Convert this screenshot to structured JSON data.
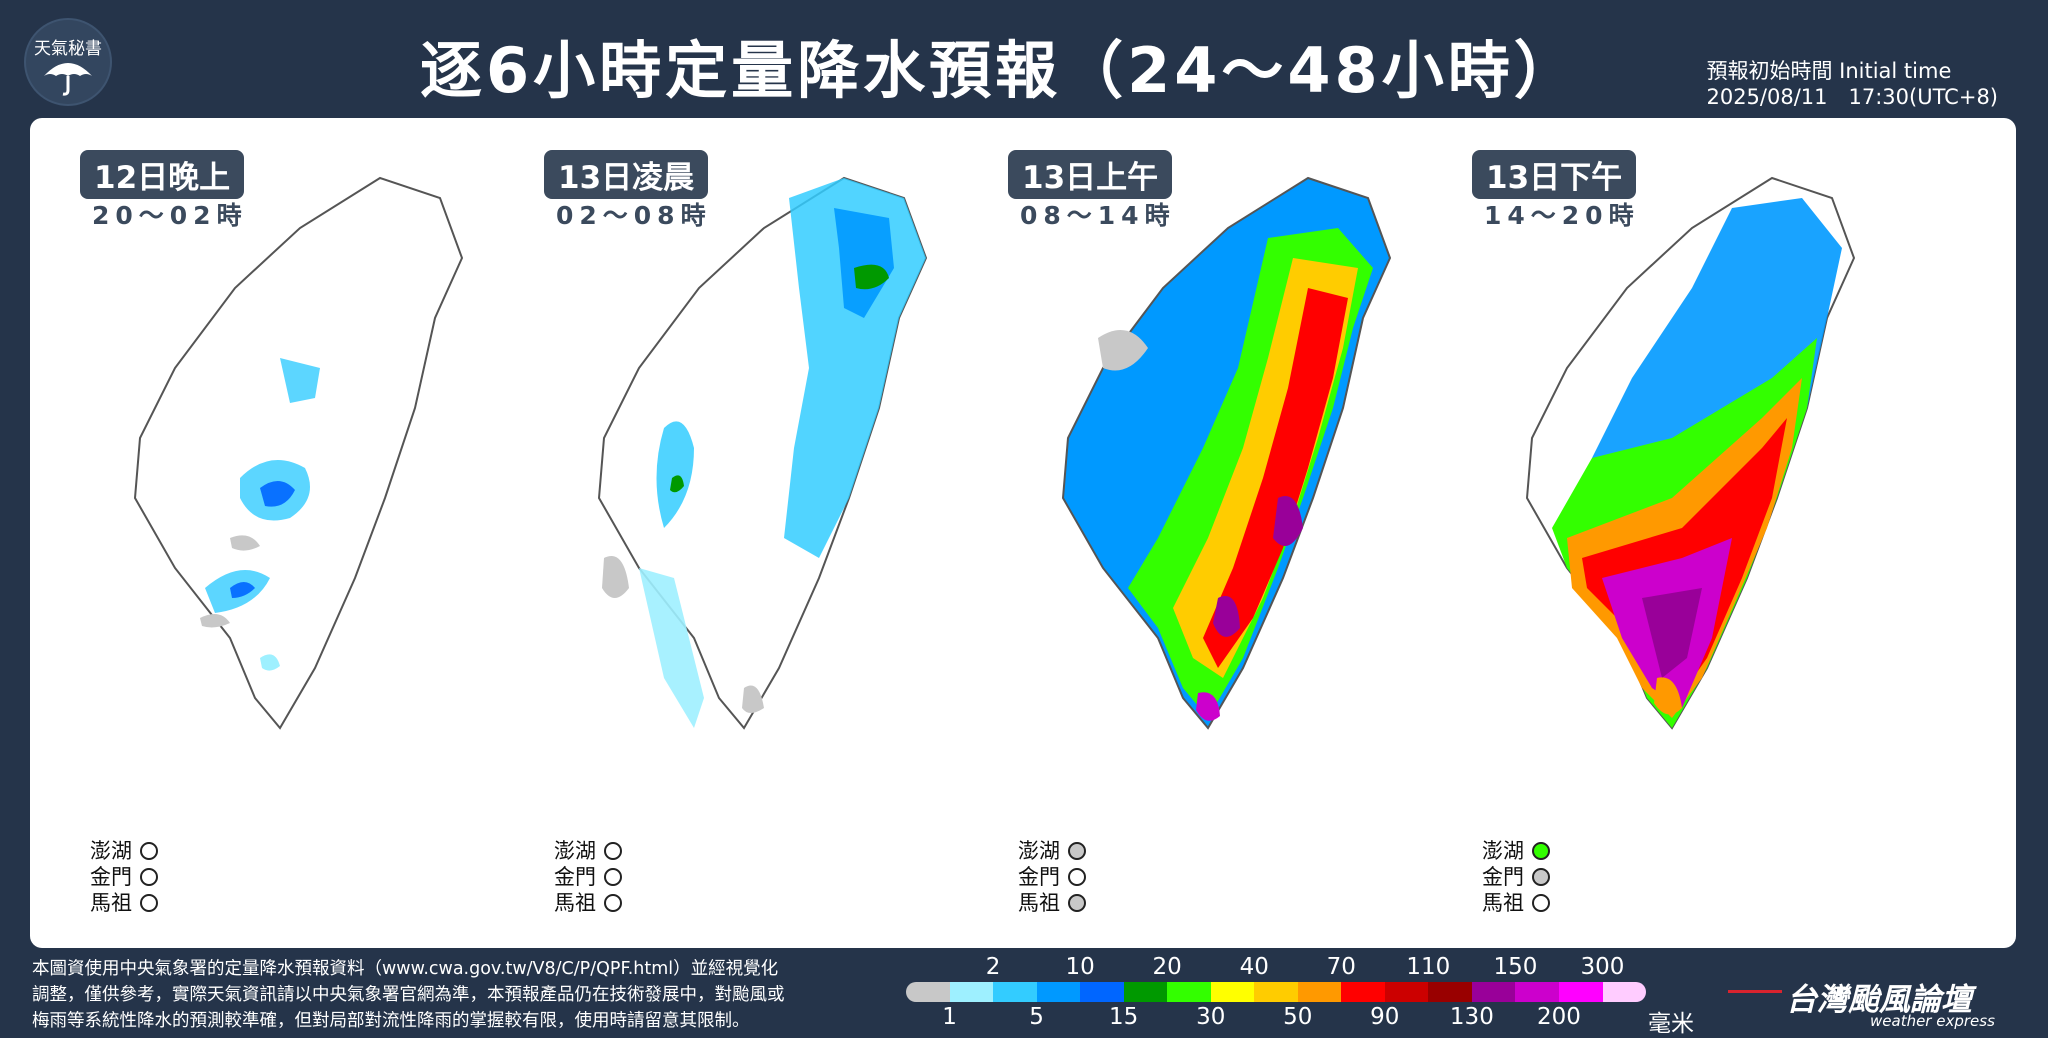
{
  "header": {
    "logo_text": "天氣秘書",
    "title": "逐6小時定量降水預報（24～48小時）",
    "initial_time_label": "預報初始時間 Initial time",
    "initial_time_value": "2025/08/11　17:30(UTC+8)"
  },
  "islands": [
    "澎湖",
    "金門",
    "馬祖"
  ],
  "maps": [
    {
      "period": "12日晚上",
      "hours": "20～02時",
      "islands_status": [
        "empty",
        "empty",
        "empty"
      ]
    },
    {
      "period": "13日凌晨",
      "hours": "02～08時",
      "islands_status": [
        "empty",
        "empty",
        "empty"
      ]
    },
    {
      "period": "13日上午",
      "hours": "08～14時",
      "islands_status": [
        "gray",
        "empty",
        "gray"
      ]
    },
    {
      "period": "13日下午",
      "hours": "14～20時",
      "islands_status": [
        "green",
        "gray",
        "empty"
      ]
    }
  ],
  "footer": {
    "note_line1": "本圖資使用中央氣象署的定量降水預報資料（www.cwa.gov.tw/V8/C/P/QPF.html）並經視覺化",
    "note_line2": "調整，僅供參考，實際天氣資訊請以中央氣象署官網為準，本預報產品仍在技術發展中，對颱風或",
    "note_line3": "梅雨等系統性降水的預測較準確，但對局部對流性降雨的掌握較有限，使用時請留意其限制。"
  },
  "legend": {
    "top_ticks": [
      "2",
      "10",
      "20",
      "40",
      "70",
      "110",
      "150",
      "300"
    ],
    "bottom_ticks": [
      "1",
      "5",
      "15",
      "30",
      "50",
      "90",
      "130",
      "200"
    ],
    "unit": "毫米",
    "colors": [
      "#c8c8c8",
      "#9ef0ff",
      "#33ccff",
      "#0099ff",
      "#0066ff",
      "#009900",
      "#33ff00",
      "#ffff00",
      "#ffcc00",
      "#ff9900",
      "#ff0000",
      "#cc0000",
      "#990000",
      "#990099",
      "#cc00cc",
      "#ff00ff",
      "#ffccff"
    ]
  },
  "brand": {
    "name": "台灣颱風論壇",
    "sub": "weather express"
  }
}
